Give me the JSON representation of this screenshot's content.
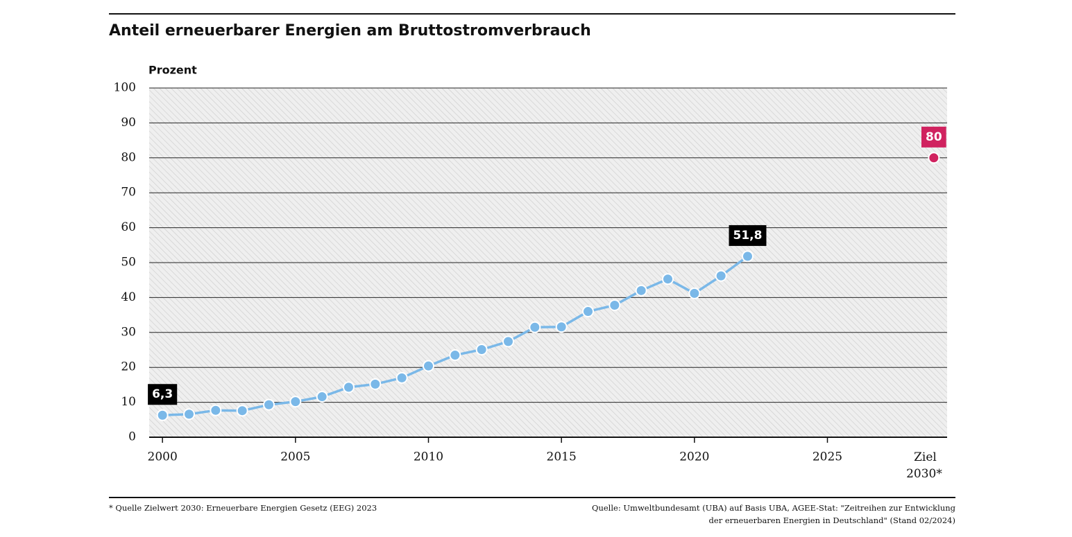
{
  "chart_data": {
    "type": "line",
    "title": "Anteil erneuerbarer Energien am Bruttostromverbrauch",
    "y_label": "Prozent",
    "x": [
      2000,
      2001,
      2002,
      2003,
      2004,
      2005,
      2006,
      2007,
      2008,
      2009,
      2010,
      2011,
      2012,
      2013,
      2014,
      2015,
      2016,
      2017,
      2018,
      2019,
      2020,
      2021,
      2022,
      2023
    ],
    "series": [
      {
        "name": "Anteil",
        "color": "#7ab8e8",
        "values": [
          6.3,
          6.6,
          7.7,
          7.6,
          9.3,
          10.2,
          11.6,
          14.3,
          15.2,
          17.0,
          20.4,
          23.5,
          25.1,
          27.4,
          31.5,
          31.6,
          36.0,
          37.8,
          42.0,
          45.3,
          41.2,
          46.2,
          51.8,
          null
        ],
        "value_labels": [
          "6,3",
          null,
          null,
          null,
          null,
          null,
          null,
          null,
          null,
          null,
          null,
          null,
          null,
          null,
          null,
          null,
          null,
          null,
          null,
          null,
          null,
          null,
          "51,8",
          null
        ]
      }
    ],
    "target": {
      "label": "Ziel 2030*",
      "value": 80,
      "value_label": "80",
      "color": "#d0225f"
    },
    "xlim": [
      1999.5,
      2029.5
    ],
    "xticks": [
      2000,
      2005,
      2010,
      2015,
      2020,
      2025
    ],
    "ylim": [
      0,
      100
    ],
    "yticks": [
      0,
      10,
      20,
      30,
      40,
      50,
      60,
      70,
      80,
      90,
      100
    ],
    "grid": true,
    "footnote": "* Quelle Zielwert 2030: Erneuerbare Energien Gesetz (EEG) 2023",
    "source": "Quelle: Umweltbundesamt (UBA) auf Basis UBA, AGEE-Stat: \"Zeitreihen zur Entwicklung der erneuerbaren Energien in Deutschland\" (Stand 02/2024)"
  }
}
